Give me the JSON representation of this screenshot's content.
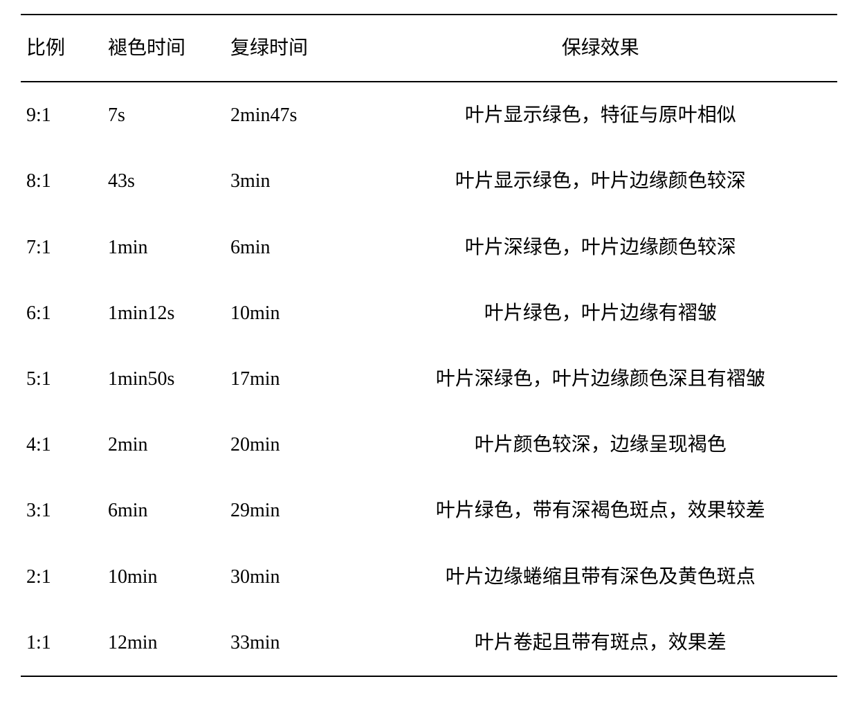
{
  "table": {
    "columns": [
      "比例",
      "褪色时间",
      "复绿时间",
      "保绿效果"
    ],
    "rows": [
      [
        "9:1",
        "7s",
        "2min47s",
        "叶片显示绿色，特征与原叶相似"
      ],
      [
        "8:1",
        "43s",
        "3min",
        "叶片显示绿色，叶片边缘颜色较深"
      ],
      [
        "7:1",
        "1min",
        "6min",
        "叶片深绿色，叶片边缘颜色较深"
      ],
      [
        "6:1",
        "1min12s",
        "10min",
        "叶片绿色，叶片边缘有褶皱"
      ],
      [
        "5:1",
        "1min50s",
        "17min",
        "叶片深绿色，叶片边缘颜色深且有褶皱"
      ],
      [
        "4:1",
        "2min",
        "20min",
        "叶片颜色较深，边缘呈现褐色"
      ],
      [
        "3:1",
        "6min",
        "29min",
        "叶片绿色，带有深褐色斑点，效果较差"
      ],
      [
        "2:1",
        "10min",
        "30min",
        "叶片边缘蜷缩且带有深色及黄色斑点"
      ],
      [
        "1:1",
        "12min",
        "33min",
        "叶片卷起且带有斑点，效果差"
      ]
    ],
    "column_widths": [
      "10%",
      "15%",
      "17%",
      "58%"
    ],
    "font_size": 28,
    "border_color": "#000000",
    "background_color": "#ffffff",
    "text_color": "#000000"
  }
}
